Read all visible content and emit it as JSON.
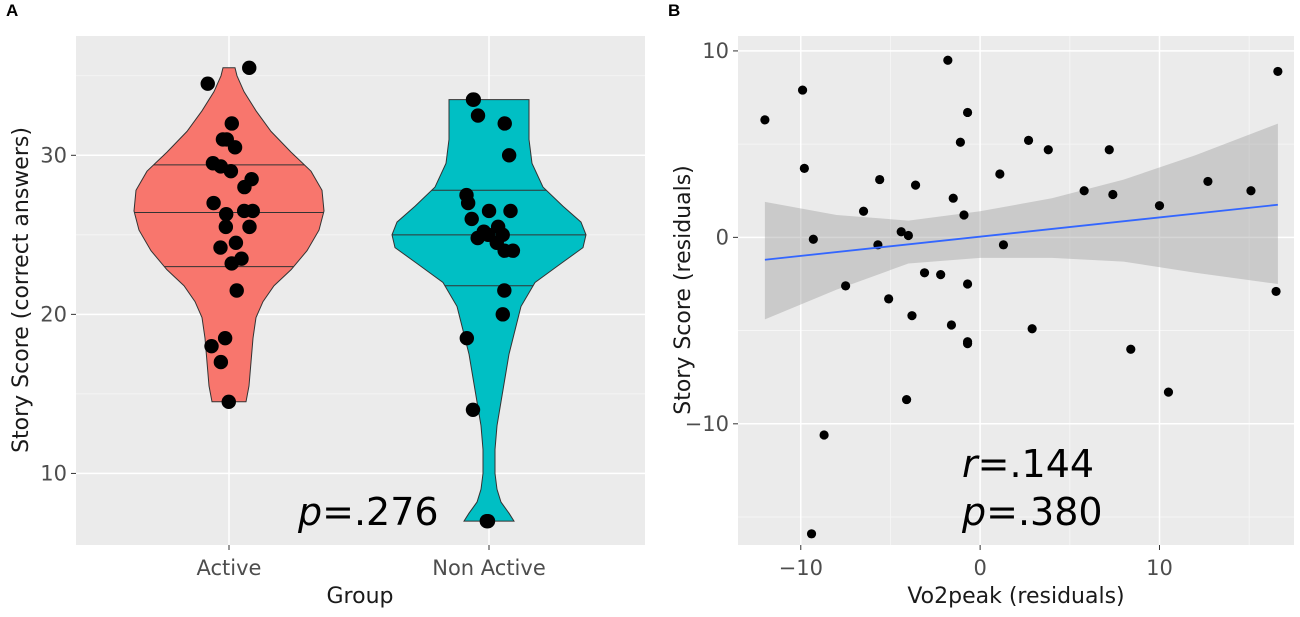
{
  "chart_data": [
    {
      "panel_label": "A",
      "type": "violin",
      "title": "",
      "xlabel": "Group",
      "ylabel": "Story Score (correct answers)",
      "ylim": [
        5.5,
        37.5
      ],
      "yticks": [
        10,
        20,
        30
      ],
      "grid": true,
      "annotation": {
        "italic": "p",
        "rest": "=.276"
      },
      "groups": [
        {
          "name": "Active",
          "fill": "#f8766d",
          "quantiles": [
            23.0,
            26.4,
            29.4
          ],
          "density": [
            [
              14.5,
              0.17
            ],
            [
              15.5,
              0.2
            ],
            [
              17.0,
              0.22
            ],
            [
              18.5,
              0.24
            ],
            [
              19.8,
              0.27
            ],
            [
              20.8,
              0.34
            ],
            [
              21.8,
              0.45
            ],
            [
              22.8,
              0.62
            ],
            [
              24.0,
              0.78
            ],
            [
              25.3,
              0.9
            ],
            [
              26.5,
              0.95
            ],
            [
              27.8,
              0.93
            ],
            [
              29.0,
              0.82
            ],
            [
              30.2,
              0.62
            ],
            [
              31.5,
              0.42
            ],
            [
              32.8,
              0.27
            ],
            [
              34.0,
              0.15
            ],
            [
              35.0,
              0.08
            ],
            [
              35.5,
              0.06
            ]
          ],
          "points": [
            35.5,
            34.5,
            32,
            31,
            31,
            30.5,
            29.5,
            29.3,
            29,
            28.5,
            28,
            27,
            26.5,
            26.5,
            26.3,
            25.5,
            25.5,
            24.5,
            24.2,
            23.5,
            23.2,
            21.5,
            18.5,
            18,
            17,
            14.5
          ]
        },
        {
          "name": "Non Active",
          "fill": "#00bfc4",
          "quantiles": [
            21.8,
            25.0,
            27.8
          ],
          "density": [
            [
              7.0,
              0.25
            ],
            [
              7.5,
              0.2
            ],
            [
              8.2,
              0.12
            ],
            [
              9.0,
              0.08
            ],
            [
              10.0,
              0.06
            ],
            [
              11.5,
              0.06
            ],
            [
              13.0,
              0.08
            ],
            [
              14.5,
              0.12
            ],
            [
              16.0,
              0.16
            ],
            [
              17.5,
              0.2
            ],
            [
              19.0,
              0.26
            ],
            [
              20.5,
              0.32
            ],
            [
              22.0,
              0.46
            ],
            [
              23.2,
              0.72
            ],
            [
              24.2,
              0.94
            ],
            [
              25.0,
              0.97
            ],
            [
              25.8,
              0.92
            ],
            [
              26.8,
              0.74
            ],
            [
              28.0,
              0.54
            ],
            [
              29.5,
              0.43
            ],
            [
              31.0,
              0.4
            ],
            [
              32.5,
              0.4
            ],
            [
              33.5,
              0.4
            ]
          ],
          "points": [
            33.5,
            33.5,
            32.5,
            32,
            30,
            27.5,
            27,
            26.5,
            26.5,
            26,
            25.5,
            25.2,
            25,
            25,
            24.8,
            24.5,
            24,
            24,
            21.5,
            20,
            18.5,
            14,
            7,
            7
          ]
        }
      ]
    },
    {
      "panel_label": "B",
      "type": "scatter",
      "title": "",
      "xlabel": "Vo2peak (residuals)",
      "ylabel": "Story Score (residuals)",
      "xlim": [
        -13.5,
        17.5
      ],
      "ylim": [
        -16.5,
        10.8
      ],
      "xticks": [
        -10,
        0,
        10
      ],
      "yticks": [
        -10,
        0,
        10
      ],
      "grid": true,
      "fit": {
        "method": "lm",
        "x0": -12,
        "x1": 16.6,
        "y0": -1.2,
        "y1": 1.75,
        "band": [
          [
            -12,
            -4.4,
            1.9
          ],
          [
            -8,
            -2.8,
            1.2
          ],
          [
            -4,
            -1.4,
            0.9
          ],
          [
            0,
            -1.1,
            1.4
          ],
          [
            4,
            -1.1,
            2.1
          ],
          [
            8,
            -1.3,
            3.1
          ],
          [
            12,
            -1.9,
            4.4
          ],
          [
            16.6,
            -2.5,
            6.1
          ]
        ]
      },
      "annotations": [
        {
          "italic": "r",
          "rest": "=.144"
        },
        {
          "italic": "p",
          "rest": "=.380"
        }
      ],
      "points": [
        [
          -12,
          6.3
        ],
        [
          -9.9,
          7.9
        ],
        [
          -9.8,
          3.7
        ],
        [
          -9.3,
          -0.1
        ],
        [
          -9.4,
          -15.9
        ],
        [
          -8.7,
          -10.6
        ],
        [
          -7.5,
          -2.6
        ],
        [
          -6.5,
          1.4
        ],
        [
          -5.7,
          -0.4
        ],
        [
          -5.6,
          3.1
        ],
        [
          -5.1,
          -3.3
        ],
        [
          -4.4,
          0.3
        ],
        [
          -4.0,
          0.1
        ],
        [
          -4.1,
          -8.7
        ],
        [
          -3.8,
          -4.2
        ],
        [
          -3.6,
          2.8
        ],
        [
          -3.1,
          -1.9
        ],
        [
          -2.2,
          -2.0
        ],
        [
          -1.8,
          9.5
        ],
        [
          -1.6,
          -4.7
        ],
        [
          -1.5,
          2.1
        ],
        [
          -1.1,
          5.1
        ],
        [
          -0.9,
          1.2
        ],
        [
          -0.7,
          6.7
        ],
        [
          -0.7,
          -2.5
        ],
        [
          -0.7,
          -5.6
        ],
        [
          -0.7,
          -5.7
        ],
        [
          1.1,
          3.4
        ],
        [
          1.3,
          -0.4
        ],
        [
          2.7,
          5.2
        ],
        [
          2.9,
          -4.9
        ],
        [
          3.8,
          4.7
        ],
        [
          5.8,
          2.5
        ],
        [
          7.2,
          4.7
        ],
        [
          7.4,
          2.3
        ],
        [
          8.4,
          -6.0
        ],
        [
          10.0,
          1.7
        ],
        [
          10.5,
          -8.3
        ],
        [
          12.7,
          3.0
        ],
        [
          15.1,
          2.5
        ],
        [
          16.6,
          8.9
        ],
        [
          16.5,
          -2.9
        ]
      ]
    }
  ]
}
